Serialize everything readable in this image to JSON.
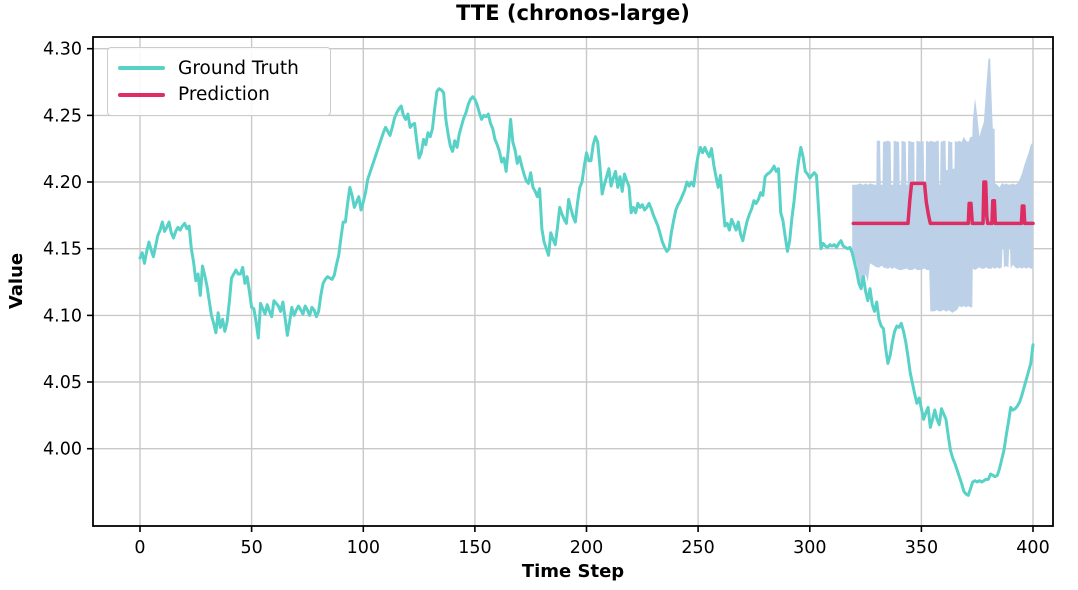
{
  "figure": {
    "title": "TTE (chronos-large)",
    "xlabel": "Time Step",
    "ylabel": "Value"
  },
  "chart_data": {
    "type": "line",
    "title": "TTE (chronos-large)",
    "xlabel": "Time Step",
    "ylabel": "Value",
    "grid": true,
    "grid_color": "#c9c9c9",
    "frame_color": "#000000",
    "legend_position": "upper-left",
    "xticks": [
      0,
      50,
      100,
      150,
      200,
      250,
      300,
      350,
      400
    ],
    "yticks": [
      4.0,
      4.05,
      4.1,
      4.15,
      4.2,
      4.25,
      4.3
    ],
    "ytick_decimals": 2,
    "xlim": [
      -21.05,
      408.95
    ],
    "ylim": [
      3.942,
      4.3088
    ],
    "series": [
      {
        "name": "Ground Truth",
        "color": "#58d2c6",
        "line_width": 3,
        "x0": 0,
        "dx": 1,
        "values": [
          4.143,
          4.147,
          4.139,
          4.148,
          4.155,
          4.149,
          4.144,
          4.152,
          4.16,
          4.164,
          4.17,
          4.163,
          4.166,
          4.17,
          4.162,
          4.158,
          4.163,
          4.166,
          4.164,
          4.167,
          4.169,
          4.165,
          4.167,
          4.15,
          4.14,
          4.126,
          4.131,
          4.115,
          4.137,
          4.13,
          4.122,
          4.111,
          4.1,
          4.094,
          4.087,
          4.102,
          4.091,
          4.097,
          4.088,
          4.095,
          4.11,
          4.128,
          4.131,
          4.134,
          4.131,
          4.131,
          4.136,
          4.124,
          4.129,
          4.118,
          4.106,
          4.105,
          4.095,
          4.083,
          4.109,
          4.105,
          4.101,
          4.108,
          4.103,
          4.099,
          4.111,
          4.109,
          4.107,
          4.103,
          4.11,
          4.098,
          4.085,
          4.095,
          4.106,
          4.1,
          4.104,
          4.107,
          4.104,
          4.101,
          4.107,
          4.104,
          4.1,
          4.106,
          4.104,
          4.099,
          4.103,
          4.115,
          4.124,
          4.127,
          4.129,
          4.128,
          4.127,
          4.13,
          4.138,
          4.145,
          4.158,
          4.17,
          4.17,
          4.184,
          4.196,
          4.19,
          4.181,
          4.185,
          4.189,
          4.179,
          4.185,
          4.192,
          4.202,
          4.207,
          4.212,
          4.217,
          4.222,
          4.227,
          4.232,
          4.237,
          4.241,
          4.238,
          4.235,
          4.241,
          4.248,
          4.252,
          4.255,
          4.257,
          4.25,
          4.247,
          4.251,
          4.241,
          4.243,
          4.244,
          4.23,
          4.218,
          4.222,
          4.232,
          4.228,
          4.237,
          4.234,
          4.24,
          4.255,
          4.268,
          4.27,
          4.269,
          4.267,
          4.247,
          4.236,
          4.227,
          4.223,
          4.231,
          4.226,
          4.236,
          4.242,
          4.248,
          4.252,
          4.258,
          4.262,
          4.264,
          4.262,
          4.258,
          4.252,
          4.247,
          4.25,
          4.249,
          4.251,
          4.244,
          4.24,
          4.232,
          4.228,
          4.223,
          4.215,
          4.218,
          4.208,
          4.225,
          4.247,
          4.23,
          4.224,
          4.214,
          4.219,
          4.212,
          4.206,
          4.201,
          4.199,
          4.207,
          4.196,
          4.193,
          4.189,
          4.195,
          4.165,
          4.155,
          4.15,
          4.145,
          4.162,
          4.157,
          4.153,
          4.166,
          4.181,
          4.176,
          4.172,
          4.169,
          4.187,
          4.18,
          4.174,
          4.17,
          4.185,
          4.196,
          4.2,
          4.212,
          4.222,
          4.216,
          4.216,
          4.228,
          4.234,
          4.23,
          4.212,
          4.191,
          4.198,
          4.204,
          4.21,
          4.197,
          4.203,
          4.208,
          4.196,
          4.204,
          4.193,
          4.206,
          4.201,
          4.197,
          4.177,
          4.181,
          4.177,
          4.184,
          4.181,
          4.183,
          4.179,
          4.181,
          4.184,
          4.18,
          4.175,
          4.171,
          4.167,
          4.161,
          4.155,
          4.151,
          4.148,
          4.15,
          4.162,
          4.171,
          4.179,
          4.183,
          4.186,
          4.19,
          4.194,
          4.2,
          4.197,
          4.2,
          4.197,
          4.21,
          4.22,
          4.226,
          4.222,
          4.226,
          4.222,
          4.219,
          4.225,
          4.213,
          4.204,
          4.196,
          4.205,
          4.185,
          4.167,
          4.169,
          4.164,
          4.172,
          4.168,
          4.164,
          4.17,
          4.161,
          4.156,
          4.164,
          4.171,
          4.176,
          4.18,
          4.186,
          4.184,
          4.187,
          4.192,
          4.19,
          4.204,
          4.206,
          4.207,
          4.209,
          4.212,
          4.208,
          4.21,
          4.177,
          4.171,
          4.159,
          4.148,
          4.156,
          4.173,
          4.186,
          4.203,
          4.216,
          4.226,
          4.219,
          4.208,
          4.206,
          4.203,
          4.205,
          4.207,
          4.205,
          4.178,
          4.15,
          4.154,
          4.152,
          4.151,
          4.153,
          4.152,
          4.153,
          4.151,
          4.154,
          4.156,
          4.152,
          4.151,
          4.15,
          4.151,
          4.147,
          4.14,
          4.133,
          4.124,
          4.12,
          4.129,
          4.118,
          4.111,
          4.12,
          4.108,
          4.103,
          4.11,
          4.097,
          4.092,
          4.09,
          4.075,
          4.064,
          4.07,
          4.08,
          4.088,
          4.092,
          4.091,
          4.094,
          4.088,
          4.08,
          4.069,
          4.057,
          4.049,
          4.041,
          4.034,
          4.038,
          4.03,
          4.022,
          4.027,
          4.031,
          4.016,
          4.022,
          4.029,
          4.022,
          4.018,
          4.03,
          4.026,
          4.022,
          4.01,
          3.999,
          3.993,
          3.989,
          3.984,
          3.979,
          3.974,
          3.968,
          3.966,
          3.965,
          3.97,
          3.975,
          3.976,
          3.975,
          3.976,
          3.975,
          3.976,
          3.977,
          3.977,
          3.981,
          3.98,
          3.979,
          3.98,
          3.985,
          3.992,
          3.999,
          4.01,
          4.02,
          4.031,
          4.029,
          4.03,
          4.032,
          4.035,
          4.04,
          4.046,
          4.052,
          4.058,
          4.064,
          4.078
        ]
      },
      {
        "name": "Prediction",
        "color": "#dd2d62",
        "line_width": 3.5,
        "points": [
          [
            319.5,
            4.169
          ],
          [
            344,
            4.169
          ],
          [
            344.8,
            4.186
          ],
          [
            345.6,
            4.199
          ],
          [
            351.4,
            4.199
          ],
          [
            352.2,
            4.185
          ],
          [
            353.2,
            4.175
          ],
          [
            354,
            4.169
          ],
          [
            371,
            4.169
          ],
          [
            371.4,
            4.184
          ],
          [
            372.2,
            4.184
          ],
          [
            372.8,
            4.169
          ],
          [
            377.6,
            4.169
          ],
          [
            378,
            4.2
          ],
          [
            378.8,
            4.2
          ],
          [
            379.3,
            4.174
          ],
          [
            379.7,
            4.169
          ],
          [
            381.6,
            4.169
          ],
          [
            382,
            4.186
          ],
          [
            382.7,
            4.186
          ],
          [
            383.1,
            4.169
          ],
          [
            394.8,
            4.169
          ],
          [
            395.2,
            4.182
          ],
          [
            395.9,
            4.182
          ],
          [
            396.3,
            4.169
          ],
          [
            400,
            4.169
          ]
        ]
      }
    ],
    "uncertainty_band": {
      "name": "prediction-interval",
      "color": "#bcd1e8",
      "points": [
        [
          319,
          4.143,
          4.198
        ],
        [
          321,
          4.139,
          4.198
        ],
        [
          322.5,
          4.125,
          4.199
        ],
        [
          324,
          4.122,
          4.198
        ],
        [
          325,
          4.131,
          4.199
        ],
        [
          326,
          4.125,
          4.198
        ],
        [
          327,
          4.139,
          4.199
        ],
        [
          329,
          4.137,
          4.198
        ],
        [
          329.8,
          4.136,
          4.198
        ],
        [
          330,
          4.136,
          4.231
        ],
        [
          331.5,
          4.136,
          4.231
        ],
        [
          331.8,
          4.137,
          4.198
        ],
        [
          332.6,
          4.137,
          4.198
        ],
        [
          332.8,
          4.136,
          4.23
        ],
        [
          335,
          4.135,
          4.231
        ],
        [
          336.2,
          4.136,
          4.23
        ],
        [
          336.5,
          4.135,
          4.198
        ],
        [
          337.4,
          4.135,
          4.198
        ],
        [
          337.6,
          4.136,
          4.231
        ],
        [
          340,
          4.134,
          4.23
        ],
        [
          340.3,
          4.134,
          4.198
        ],
        [
          340.9,
          4.134,
          4.198
        ],
        [
          341.1,
          4.134,
          4.231
        ],
        [
          343,
          4.135,
          4.23
        ],
        [
          343.3,
          4.135,
          4.198
        ],
        [
          343.9,
          4.135,
          4.198
        ],
        [
          344.1,
          4.134,
          4.231
        ],
        [
          346,
          4.134,
          4.23
        ],
        [
          346.8,
          4.135,
          4.23
        ],
        [
          347,
          4.135,
          4.198
        ],
        [
          347.6,
          4.135,
          4.198
        ],
        [
          347.8,
          4.134,
          4.231
        ],
        [
          350,
          4.134,
          4.23
        ],
        [
          351,
          4.135,
          4.231
        ],
        [
          351.3,
          4.135,
          4.198
        ],
        [
          351.9,
          4.135,
          4.198
        ],
        [
          352.1,
          4.134,
          4.231
        ],
        [
          353.5,
          4.134,
          4.23
        ],
        [
          354,
          4.103,
          4.231
        ],
        [
          356,
          4.103,
          4.23
        ],
        [
          357,
          4.104,
          4.231
        ],
        [
          357.8,
          4.103,
          4.231
        ],
        [
          358,
          4.103,
          4.198
        ],
        [
          358.4,
          4.103,
          4.198
        ],
        [
          358.6,
          4.103,
          4.23
        ],
        [
          360,
          4.104,
          4.231
        ],
        [
          360.8,
          4.103,
          4.231
        ],
        [
          361,
          4.103,
          4.209
        ],
        [
          361.8,
          4.103,
          4.209
        ],
        [
          362,
          4.104,
          4.231
        ],
        [
          363,
          4.103,
          4.23
        ],
        [
          363.8,
          4.102,
          4.23
        ],
        [
          364,
          4.102,
          4.21
        ],
        [
          364.8,
          4.103,
          4.21
        ],
        [
          365,
          4.103,
          4.231
        ],
        [
          366,
          4.104,
          4.23
        ],
        [
          367,
          4.107,
          4.231
        ],
        [
          368,
          4.106,
          4.23
        ],
        [
          369,
          4.107,
          4.234
        ],
        [
          370,
          4.106,
          4.231
        ],
        [
          371,
          4.107,
          4.23
        ],
        [
          372,
          4.106,
          4.234
        ],
        [
          372.8,
          4.106,
          4.234
        ],
        [
          373,
          4.135,
          4.245
        ],
        [
          374,
          4.134,
          4.263
        ],
        [
          375,
          4.135,
          4.25
        ],
        [
          376,
          4.136,
          4.234
        ],
        [
          377,
          4.135,
          4.24
        ],
        [
          378,
          4.135,
          4.245
        ],
        [
          379,
          4.136,
          4.27
        ],
        [
          380,
          4.135,
          4.292
        ],
        [
          380.8,
          4.135,
          4.293
        ],
        [
          381.5,
          4.135,
          4.26
        ],
        [
          382,
          4.136,
          4.24
        ],
        [
          382.8,
          4.135,
          4.24
        ],
        [
          383,
          4.135,
          4.199
        ],
        [
          384,
          4.136,
          4.198
        ],
        [
          385,
          4.135,
          4.196
        ],
        [
          386,
          4.136,
          4.199
        ],
        [
          386.3,
          4.15,
          4.199
        ],
        [
          386.7,
          4.15,
          4.199
        ],
        [
          387,
          4.136,
          4.198
        ],
        [
          388,
          4.137,
          4.199
        ],
        [
          389,
          4.136,
          4.198
        ],
        [
          389.3,
          4.15,
          4.198
        ],
        [
          389.7,
          4.15,
          4.199
        ],
        [
          390,
          4.135,
          4.198
        ],
        [
          391,
          4.138,
          4.199
        ],
        [
          392,
          4.136,
          4.198
        ],
        [
          393,
          4.135,
          4.199
        ],
        [
          394,
          4.136,
          4.202
        ],
        [
          395,
          4.135,
          4.206
        ],
        [
          396,
          4.136,
          4.212
        ],
        [
          397,
          4.135,
          4.217
        ],
        [
          398,
          4.136,
          4.222
        ],
        [
          399,
          4.135,
          4.228
        ],
        [
          400,
          4.135,
          4.23
        ]
      ]
    }
  }
}
